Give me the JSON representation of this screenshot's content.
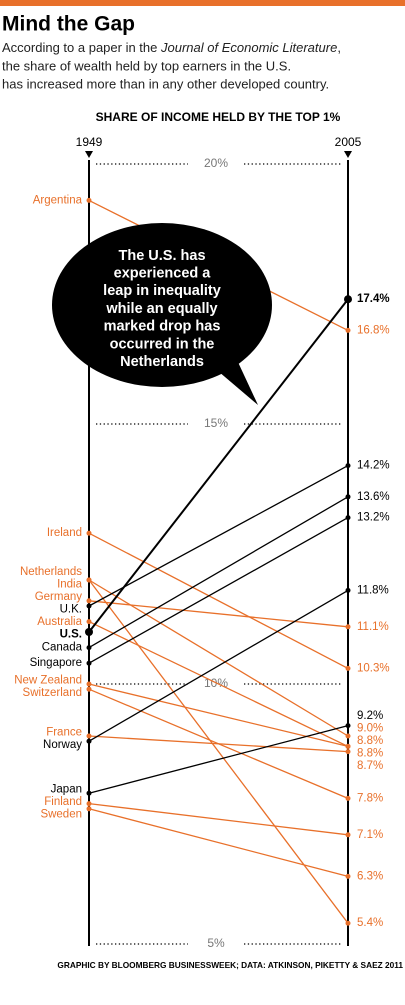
{
  "chart_data": {
    "type": "slope",
    "title": "Mind the Gap",
    "subtitle": [
      "According to a paper in the ",
      "Journal of Economic Literature",
      ",",
      "the share of wealth held by top earners in the U.S.",
      "has increased more than in any other developed country."
    ],
    "chart_title": "SHARE OF INCOME HELD BY THE TOP 1%",
    "categories": [
      "1949",
      "2005"
    ],
    "ylim": [
      5,
      20
    ],
    "yticks": [
      {
        "value": 5,
        "label": "5%"
      },
      {
        "value": 10,
        "label": "10%"
      },
      {
        "value": 15,
        "label": "15%"
      },
      {
        "value": 20,
        "label": "20%"
      }
    ],
    "annotation": [
      "The U.S. has",
      "experienced a",
      "leap in inequality",
      "while an equally",
      "marked drop has",
      "occurred in the",
      "Netherlands"
    ],
    "source": "GRAPHIC BY BLOOMBERG BUSINESSWEEK; DATA: ATKINSON, PIKETTY & SAEZ 2011",
    "series": [
      {
        "name": "Argentina",
        "color": "#e8702a",
        "values": [
          19.3,
          16.8
        ],
        "value_labels": [
          null,
          "16.8%"
        ]
      },
      {
        "name": "Ireland",
        "color": "#e8702a",
        "values": [
          12.9,
          10.3
        ],
        "value_labels": [
          null,
          "10.3%"
        ]
      },
      {
        "name": "Netherlands",
        "color": "#e8702a",
        "values": [
          12.0,
          5.4
        ],
        "value_labels": [
          null,
          "5.4%"
        ]
      },
      {
        "name": "India",
        "color": "#e8702a",
        "values": [
          12.0,
          9.0
        ],
        "value_labels": [
          null,
          "9.0%"
        ]
      },
      {
        "name": "Germany",
        "color": "#e8702a",
        "values": [
          11.6,
          11.1
        ],
        "value_labels": [
          null,
          "11.1%"
        ]
      },
      {
        "name": "U.K.",
        "color": "#000000",
        "values": [
          11.5,
          14.2
        ],
        "value_labels": [
          null,
          "14.2%"
        ]
      },
      {
        "name": "Australia",
        "color": "#e8702a",
        "values": [
          11.2,
          8.8
        ],
        "value_labels": [
          null,
          "8.8%"
        ]
      },
      {
        "name": "U.S.",
        "color": "#000000",
        "values": [
          11.0,
          17.4
        ],
        "value_labels": [
          null,
          "17.4%"
        ],
        "highlight": true
      },
      {
        "name": "Canada",
        "color": "#000000",
        "values": [
          10.7,
          13.6
        ],
        "value_labels": [
          null,
          "13.6%"
        ]
      },
      {
        "name": "Singapore",
        "color": "#000000",
        "values": [
          10.4,
          13.2
        ],
        "value_labels": [
          null,
          "13.2%"
        ]
      },
      {
        "name": "New Zealand",
        "color": "#e8702a",
        "values": [
          10.0,
          8.8
        ],
        "value_labels": [
          null,
          "8.8%"
        ]
      },
      {
        "name": "Switzerland",
        "color": "#e8702a",
        "values": [
          9.9,
          7.8
        ],
        "value_labels": [
          null,
          "7.8%"
        ]
      },
      {
        "name": "France",
        "color": "#e8702a",
        "values": [
          9.0,
          8.7
        ],
        "value_labels": [
          null,
          "8.7%"
        ]
      },
      {
        "name": "Norway",
        "color": "#000000",
        "values": [
          8.9,
          11.8
        ],
        "value_labels": [
          null,
          "11.8%"
        ]
      },
      {
        "name": "Japan",
        "color": "#000000",
        "values": [
          7.9,
          9.2
        ],
        "value_labels": [
          null,
          "9.2%"
        ]
      },
      {
        "name": "Finland",
        "color": "#e8702a",
        "values": [
          7.7,
          7.1
        ],
        "value_labels": [
          null,
          "7.1%"
        ]
      },
      {
        "name": "Sweden",
        "color": "#e8702a",
        "values": [
          7.6,
          6.3
        ],
        "value_labels": [
          null,
          "6.3%"
        ]
      }
    ]
  }
}
